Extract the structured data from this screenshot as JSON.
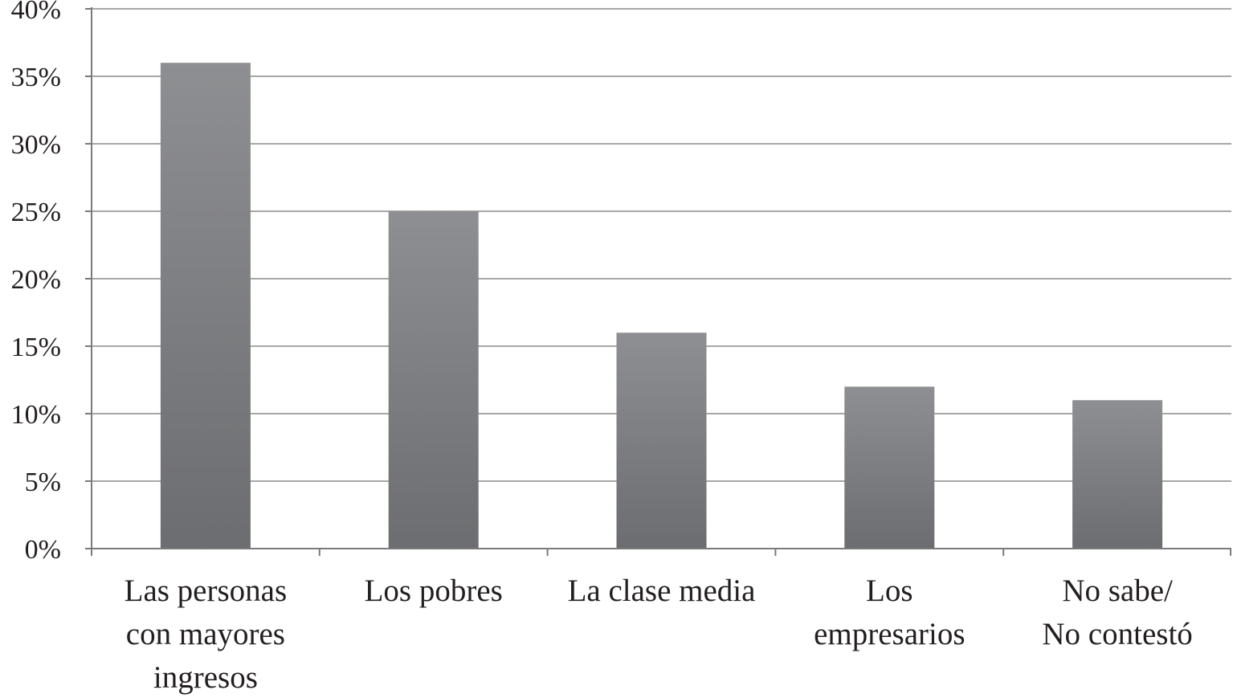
{
  "chart_data": {
    "type": "bar",
    "title": "",
    "xlabel": "",
    "ylabel": "",
    "categories": [
      [
        "Las personas",
        "con mayores",
        "ingresos"
      ],
      [
        "Los pobres"
      ],
      [
        "La clase media"
      ],
      [
        "Los",
        "empresarios"
      ],
      [
        "No sabe/",
        "No contestó"
      ]
    ],
    "values": [
      36,
      25,
      16,
      12,
      11
    ],
    "ylim": [
      0,
      40
    ],
    "yticks": [
      0,
      5,
      10,
      15,
      20,
      25,
      30,
      35,
      40
    ],
    "ytick_labels": [
      "0%",
      "5%",
      "10%",
      "15%",
      "20%",
      "25%",
      "30%",
      "35%",
      "40%"
    ],
    "grid": true,
    "legend": "none",
    "bar_color_top": "#8e8f92",
    "bar_color_bottom": "#6c6d70"
  }
}
